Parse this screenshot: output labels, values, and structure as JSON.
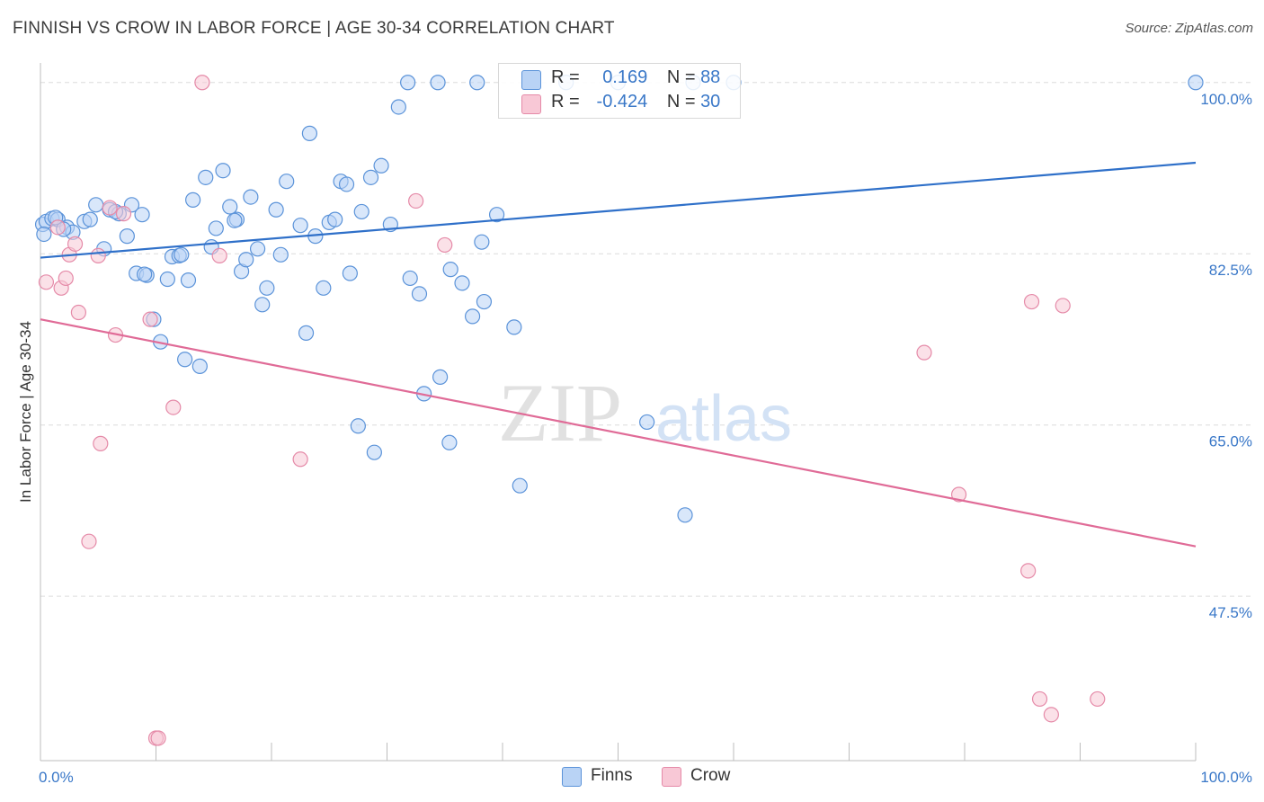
{
  "title": "FINNISH VS CROW IN LABOR FORCE | AGE 30-34 CORRELATION CHART",
  "source": "Source: ZipAtlas.com",
  "watermark": {
    "zip": "ZIP",
    "atlas": "atlas"
  },
  "legend": {
    "rows": [
      {
        "r_label": "R =",
        "r_value": "0.169",
        "n_label": "N =",
        "n_value": "88"
      },
      {
        "r_label": "R =",
        "r_value": "-0.424",
        "n_label": "N =",
        "n_value": "30"
      }
    ]
  },
  "bottom_legend": [
    "Finns",
    "Crow"
  ],
  "colors": {
    "finns_fill": "#b9d3f5",
    "finns_stroke": "#5b93d9",
    "finns_line": "#2f70c9",
    "crow_fill": "#f8c8d6",
    "crow_stroke": "#e58aa8",
    "crow_line": "#e06b97",
    "grid": "#dcdcdc",
    "tick_label": "#3a78c8"
  },
  "chart_data": {
    "type": "scatter",
    "ylabel": "In Labor Force | Age 30-34",
    "x_tick_labels": [
      "0.0%",
      "100.0%"
    ],
    "y_tick_labels": [
      "100.0%",
      "82.5%",
      "65.0%",
      "47.5%"
    ],
    "y_ticks": [
      100,
      82.5,
      65,
      47.5
    ],
    "xlim": [
      0,
      100
    ],
    "ylim": [
      30.7,
      102.0
    ],
    "legend_position": "top-center",
    "series": [
      {
        "name": "Finns",
        "r": 0.169,
        "n": 88,
        "trend": {
          "x": [
            0,
            100
          ],
          "y": [
            82.1,
            91.8
          ]
        },
        "points": [
          [
            0.2,
            85.5
          ],
          [
            0.5,
            85.8
          ],
          [
            1.0,
            86.1
          ],
          [
            1.5,
            86.0
          ],
          [
            2.3,
            85.2
          ],
          [
            2.8,
            84.7
          ],
          [
            3.8,
            85.8
          ],
          [
            4.3,
            86.0
          ],
          [
            4.8,
            87.5
          ],
          [
            5.5,
            83.0
          ],
          [
            6.0,
            87.0
          ],
          [
            6.8,
            86.6
          ],
          [
            7.5,
            84.3
          ],
          [
            7.9,
            87.5
          ],
          [
            8.3,
            80.5
          ],
          [
            8.8,
            86.5
          ],
          [
            9.2,
            80.3
          ],
          [
            9.8,
            75.8
          ],
          [
            10.4,
            73.5
          ],
          [
            11.0,
            79.9
          ],
          [
            11.4,
            82.2
          ],
          [
            12.0,
            82.3
          ],
          [
            12.5,
            71.7
          ],
          [
            12.8,
            79.8
          ],
          [
            13.2,
            88.0
          ],
          [
            13.8,
            71.0
          ],
          [
            14.3,
            90.3
          ],
          [
            14.8,
            83.2
          ],
          [
            15.2,
            85.1
          ],
          [
            15.8,
            91.0
          ],
          [
            16.4,
            87.3
          ],
          [
            17.0,
            86.0
          ],
          [
            17.4,
            80.7
          ],
          [
            17.8,
            81.9
          ],
          [
            18.2,
            88.3
          ],
          [
            18.8,
            83.0
          ],
          [
            19.2,
            77.3
          ],
          [
            19.6,
            79.0
          ],
          [
            20.4,
            87.0
          ],
          [
            20.8,
            82.4
          ],
          [
            21.3,
            89.9
          ],
          [
            22.5,
            85.4
          ],
          [
            23.0,
            74.4
          ],
          [
            23.3,
            94.8
          ],
          [
            23.8,
            84.3
          ],
          [
            24.5,
            79.0
          ],
          [
            25.0,
            85.7
          ],
          [
            25.5,
            86.0
          ],
          [
            26.0,
            89.9
          ],
          [
            26.5,
            89.6
          ],
          [
            26.8,
            80.5
          ],
          [
            27.5,
            64.9
          ],
          [
            27.8,
            86.8
          ],
          [
            28.6,
            90.3
          ],
          [
            28.9,
            62.2
          ],
          [
            29.5,
            91.5
          ],
          [
            30.3,
            85.5
          ],
          [
            31.0,
            97.5
          ],
          [
            31.8,
            100.0
          ],
          [
            32.0,
            80.0
          ],
          [
            32.8,
            78.4
          ],
          [
            33.2,
            68.2
          ],
          [
            34.4,
            100.0
          ],
          [
            34.6,
            69.9
          ],
          [
            35.4,
            63.2
          ],
          [
            35.5,
            80.9
          ],
          [
            36.5,
            79.5
          ],
          [
            37.4,
            76.1
          ],
          [
            37.8,
            100.0
          ],
          [
            38.2,
            83.7
          ],
          [
            38.4,
            77.6
          ],
          [
            39.5,
            86.5
          ],
          [
            41.0,
            75.0
          ],
          [
            41.5,
            58.8
          ],
          [
            45.5,
            100.0
          ],
          [
            50.0,
            100.0
          ],
          [
            52.5,
            65.3
          ],
          [
            55.8,
            55.8
          ],
          [
            56.5,
            100.0
          ],
          [
            60.0,
            100.0
          ],
          [
            100.0,
            100.0
          ],
          [
            0.3,
            84.5
          ],
          [
            1.3,
            86.2
          ],
          [
            2.0,
            85.0
          ],
          [
            6.5,
            86.8
          ],
          [
            9.0,
            80.4
          ],
          [
            12.2,
            82.4
          ],
          [
            16.8,
            85.9
          ]
        ]
      },
      {
        "name": "Crow",
        "r": -0.424,
        "n": 30,
        "trend": {
          "x": [
            0,
            100
          ],
          "y": [
            75.8,
            52.6
          ]
        },
        "points": [
          [
            0.5,
            79.6
          ],
          [
            1.5,
            85.2
          ],
          [
            1.8,
            79.0
          ],
          [
            2.2,
            80.0
          ],
          [
            2.5,
            82.4
          ],
          [
            3.0,
            83.5
          ],
          [
            3.3,
            76.5
          ],
          [
            4.2,
            53.1
          ],
          [
            5.0,
            82.3
          ],
          [
            5.2,
            63.1
          ],
          [
            6.0,
            87.2
          ],
          [
            6.5,
            74.2
          ],
          [
            7.2,
            86.6
          ],
          [
            9.5,
            75.8
          ],
          [
            10.0,
            33.0
          ],
          [
            10.2,
            33.0
          ],
          [
            11.5,
            66.8
          ],
          [
            14.0,
            100.0
          ],
          [
            15.5,
            82.3
          ],
          [
            22.5,
            61.5
          ],
          [
            32.5,
            87.9
          ],
          [
            35.0,
            83.4
          ],
          [
            76.5,
            72.4
          ],
          [
            79.5,
            57.9
          ],
          [
            85.5,
            50.1
          ],
          [
            85.8,
            77.6
          ],
          [
            86.5,
            37.0
          ],
          [
            87.5,
            35.4
          ],
          [
            88.5,
            77.2
          ],
          [
            91.5,
            37.0
          ]
        ]
      }
    ]
  }
}
